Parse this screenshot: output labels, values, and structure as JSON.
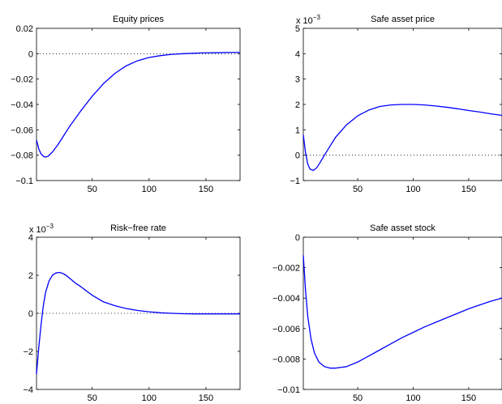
{
  "chart_data": [
    {
      "type": "line",
      "title": "Equity prices",
      "xlim": [
        1,
        180
      ],
      "ylim": [
        -0.1,
        0.02
      ],
      "xticks": [
        50,
        100,
        150
      ],
      "yticks": [
        -0.1,
        -0.08,
        -0.06,
        -0.04,
        -0.02,
        0,
        0.02
      ],
      "ytick_labels": [
        "−0.1",
        "−0.08",
        "−0.06",
        "−0.04",
        "−0.02",
        "0",
        "0.02"
      ],
      "exponent": "",
      "zero_line": true,
      "series": [
        {
          "color": "#0000ff",
          "x": [
            1,
            3,
            5,
            8,
            11,
            15,
            20,
            25,
            30,
            40,
            50,
            60,
            70,
            80,
            90,
            100,
            110,
            120,
            130,
            140,
            150,
            160,
            170,
            180
          ],
          "y": [
            -0.068,
            -0.075,
            -0.079,
            -0.0815,
            -0.081,
            -0.0775,
            -0.0715,
            -0.0645,
            -0.0575,
            -0.045,
            -0.0335,
            -0.0235,
            -0.0155,
            -0.0095,
            -0.0055,
            -0.003,
            -0.0015,
            -0.0005,
            0,
            0.0004,
            0.0007,
            0.0008,
            0.001,
            0.001
          ]
        }
      ]
    },
    {
      "type": "line",
      "title": "Safe asset price",
      "xlim": [
        1,
        180
      ],
      "ylim": [
        -1,
        5
      ],
      "xticks": [
        50,
        100,
        150
      ],
      "yticks": [
        -1,
        0,
        1,
        2,
        3,
        4,
        5
      ],
      "ytick_labels": [
        "−1",
        "0",
        "1",
        "2",
        "3",
        "4",
        "5"
      ],
      "exponent": "−3",
      "zero_line": true,
      "series": [
        {
          "color": "#0000ff",
          "x": [
            1,
            3,
            5,
            7,
            10,
            13,
            16,
            20,
            25,
            30,
            40,
            50,
            60,
            70,
            80,
            90,
            100,
            110,
            120,
            130,
            140,
            150,
            160,
            170,
            180
          ],
          "y": [
            0.8,
            0.1,
            -0.35,
            -0.55,
            -0.6,
            -0.5,
            -0.3,
            0,
            0.35,
            0.7,
            1.2,
            1.55,
            1.78,
            1.92,
            1.98,
            2.0,
            2.0,
            1.98,
            1.94,
            1.89,
            1.83,
            1.76,
            1.7,
            1.63,
            1.57
          ]
        }
      ]
    },
    {
      "type": "line",
      "title": "Risk−free rate",
      "xlim": [
        1,
        180
      ],
      "ylim": [
        -4,
        4
      ],
      "xticks": [
        50,
        100,
        150
      ],
      "yticks": [
        -4,
        -2,
        0,
        2,
        4
      ],
      "ytick_labels": [
        "−4",
        "−2",
        "0",
        "2",
        "4"
      ],
      "exponent": "−3",
      "zero_line": true,
      "series": [
        {
          "color": "#0000ff",
          "x": [
            1,
            3,
            5,
            7,
            9,
            12,
            15,
            18,
            21,
            24,
            27,
            30,
            35,
            40,
            50,
            60,
            70,
            80,
            90,
            100,
            110,
            120,
            130,
            140,
            150,
            160,
            170,
            180
          ],
          "y": [
            -3.2,
            -1.8,
            -0.6,
            0.4,
            1.1,
            1.7,
            2.0,
            2.12,
            2.15,
            2.1,
            2.0,
            1.85,
            1.6,
            1.4,
            0.95,
            0.6,
            0.4,
            0.25,
            0.15,
            0.08,
            0.03,
            0.0,
            -0.02,
            -0.03,
            -0.03,
            -0.03,
            -0.03,
            -0.03
          ]
        }
      ]
    },
    {
      "type": "line",
      "title": "Safe asset stock",
      "xlim": [
        1,
        180
      ],
      "ylim": [
        -0.01,
        0
      ],
      "xticks": [
        50,
        100,
        150
      ],
      "yticks": [
        -0.01,
        -0.008,
        -0.006,
        -0.004,
        -0.002,
        0
      ],
      "ytick_labels": [
        "−0.01",
        "−0.008",
        "−0.006",
        "−0.004",
        "−0.002",
        "0"
      ],
      "exponent": "",
      "zero_line": false,
      "series": [
        {
          "color": "#0000ff",
          "x": [
            1,
            3,
            5,
            8,
            11,
            15,
            20,
            25,
            30,
            35,
            40,
            50,
            60,
            70,
            80,
            90,
            100,
            110,
            120,
            130,
            140,
            150,
            160,
            170,
            180
          ],
          "y": [
            -0.0012,
            -0.0035,
            -0.0052,
            -0.0067,
            -0.0076,
            -0.0082,
            -0.0085,
            -0.0086,
            -0.0086,
            -0.00855,
            -0.0085,
            -0.0082,
            -0.0078,
            -0.0074,
            -0.007,
            -0.0066,
            -0.00625,
            -0.0059,
            -0.0056,
            -0.0053,
            -0.005,
            -0.0047,
            -0.00445,
            -0.0042,
            -0.004
          ]
        }
      ]
    }
  ]
}
